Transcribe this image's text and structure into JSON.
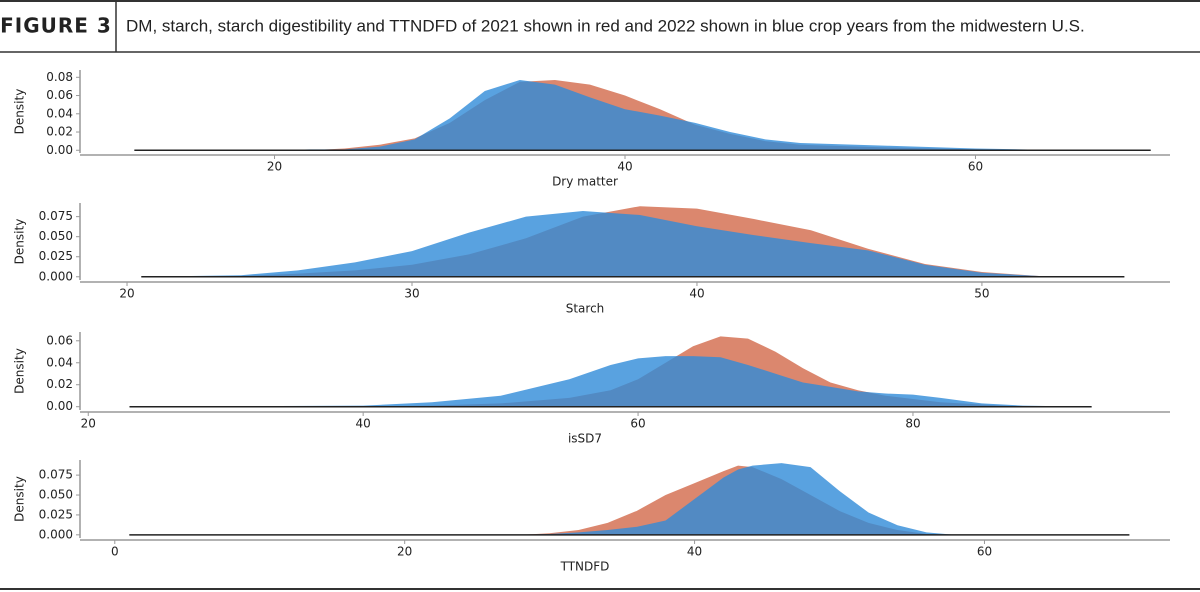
{
  "figure_label": "FIGURE 3",
  "caption": "DM, starch, starch digestibility and TTNDFD of 2021 shown in red and 2022 shown in blue crop years from the midwestern U.S.",
  "chart_data": [
    {
      "type": "area",
      "xlabel": "Dry matter",
      "ylabel": "Density",
      "x": [
        12,
        16,
        20,
        22,
        24,
        26,
        28,
        30,
        32,
        34,
        36,
        38,
        40,
        42,
        44,
        46,
        48,
        50,
        55,
        60,
        65,
        70
      ],
      "series": [
        {
          "color": "#d77a5e",
          "values": [
            0,
            0,
            0,
            0,
            0.002,
            0.006,
            0.013,
            0.03,
            0.055,
            0.075,
            0.077,
            0.072,
            0.06,
            0.045,
            0.028,
            0.018,
            0.01,
            0.006,
            0.003,
            0.001,
            0,
            0
          ]
        },
        {
          "color": "#2f8bd8",
          "values": [
            0,
            0,
            0,
            0.001,
            0.001,
            0.004,
            0.012,
            0.035,
            0.065,
            0.077,
            0.072,
            0.058,
            0.045,
            0.038,
            0.03,
            0.02,
            0.012,
            0.008,
            0.005,
            0.002,
            0,
            0
          ]
        }
      ],
      "xlim": [
        8.9,
        71.1
      ],
      "ylim": [
        -0.003,
        0.088
      ],
      "xticks": [
        20,
        40,
        60
      ],
      "yticks": [
        {
          "value": 0,
          "label": "0.00"
        },
        {
          "value": 0.02,
          "label": "0.02"
        },
        {
          "value": 0.04,
          "label": "0.04"
        },
        {
          "value": 0.06,
          "label": "0.06"
        },
        {
          "value": 0.08,
          "label": "0.08"
        }
      ]
    },
    {
      "type": "area",
      "xlabel": "Starch",
      "ylabel": "Density",
      "x": [
        20.5,
        24,
        26,
        28,
        30,
        32,
        34,
        36,
        38,
        40,
        42,
        44,
        46,
        48,
        50,
        52,
        55
      ],
      "series": [
        {
          "color": "#d77a5e",
          "values": [
            0,
            0.001,
            0.004,
            0.008,
            0.015,
            0.028,
            0.048,
            0.075,
            0.088,
            0.085,
            0.072,
            0.058,
            0.035,
            0.016,
            0.006,
            0.001,
            0
          ]
        },
        {
          "color": "#2f8bd8",
          "values": [
            0,
            0.002,
            0.008,
            0.018,
            0.032,
            0.055,
            0.075,
            0.082,
            0.077,
            0.063,
            0.052,
            0.042,
            0.033,
            0.015,
            0.005,
            0.001,
            0
          ]
        }
      ],
      "xlim": [
        18.35,
        56.6
      ],
      "ylim": [
        -0.004,
        0.092
      ],
      "xticks": [
        20,
        30,
        40,
        50
      ],
      "yticks": [
        {
          "value": 0,
          "label": "0.000"
        },
        {
          "value": 0.025,
          "label": "0.025"
        },
        {
          "value": 0.05,
          "label": "0.050"
        },
        {
          "value": 0.075,
          "label": "0.075"
        }
      ]
    },
    {
      "type": "area",
      "xlabel": "isSD7",
      "ylabel": "Density",
      "x": [
        23,
        40,
        45,
        50,
        55,
        58,
        60,
        62,
        64,
        66,
        68,
        70,
        72,
        74,
        76,
        78,
        80,
        82,
        85,
        88,
        93
      ],
      "series": [
        {
          "color": "#d77a5e",
          "values": [
            0,
            0,
            0.001,
            0.003,
            0.008,
            0.015,
            0.025,
            0.04,
            0.055,
            0.064,
            0.062,
            0.05,
            0.035,
            0.022,
            0.015,
            0.01,
            0.007,
            0.004,
            0.002,
            0,
            0
          ]
        },
        {
          "color": "#2f8bd8",
          "values": [
            0,
            0.001,
            0.004,
            0.01,
            0.025,
            0.038,
            0.044,
            0.046,
            0.046,
            0.045,
            0.038,
            0.03,
            0.022,
            0.018,
            0.014,
            0.012,
            0.011,
            0.008,
            0.003,
            0.001,
            0
          ]
        }
      ],
      "xlim": [
        19.4,
        98.7
      ],
      "ylim": [
        -0.003,
        0.068
      ],
      "xticks": [
        20,
        40,
        60,
        80
      ],
      "yticks": [
        {
          "value": 0,
          "label": "0.00"
        },
        {
          "value": 0.02,
          "label": "0.02"
        },
        {
          "value": 0.04,
          "label": "0.04"
        },
        {
          "value": 0.06,
          "label": "0.06"
        }
      ]
    },
    {
      "type": "area",
      "xlabel": "TTNDFD",
      "ylabel": "Density",
      "x": [
        1,
        28,
        30,
        32,
        34,
        36,
        38,
        40,
        42,
        43,
        44,
        46,
        48,
        50,
        52,
        54,
        56,
        58,
        70
      ],
      "series": [
        {
          "color": "#d77a5e",
          "values": [
            0,
            0,
            0.002,
            0.006,
            0.015,
            0.03,
            0.05,
            0.065,
            0.08,
            0.087,
            0.085,
            0.07,
            0.05,
            0.03,
            0.015,
            0.006,
            0.001,
            0,
            0
          ]
        },
        {
          "color": "#2f8bd8",
          "values": [
            0,
            0,
            0.001,
            0.003,
            0.006,
            0.01,
            0.018,
            0.045,
            0.072,
            0.082,
            0.087,
            0.09,
            0.085,
            0.055,
            0.028,
            0.012,
            0.003,
            0,
            0
          ]
        }
      ],
      "xlim": [
        -2.4,
        72.8
      ],
      "ylim": [
        -0.004,
        0.094
      ],
      "xticks": [
        0,
        20,
        40,
        60
      ],
      "yticks": [
        {
          "value": 0,
          "label": "0.000"
        },
        {
          "value": 0.025,
          "label": "0.025"
        },
        {
          "value": 0.05,
          "label": "0.050"
        },
        {
          "value": 0.075,
          "label": "0.075"
        }
      ]
    }
  ]
}
